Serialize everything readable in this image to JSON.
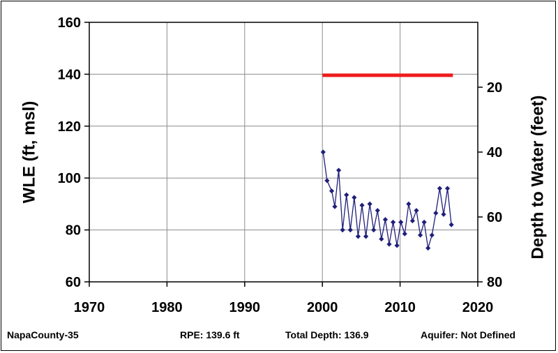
{
  "chart_data": {
    "type": "line",
    "ylabel": "WLE (ft, msl)",
    "y2label": "Depth to Water (feet)",
    "xlim": [
      1970,
      2020
    ],
    "ylim": [
      60,
      160
    ],
    "y2lim": [
      80,
      0
    ],
    "x_ticks": [
      "1970",
      "1980",
      "1990",
      "2000",
      "2010",
      "2020"
    ],
    "y_ticks": [
      "60",
      "80",
      "100",
      "120",
      "140",
      "160"
    ],
    "y2_ticks": [
      "80",
      "60",
      "40",
      "20"
    ],
    "y2_tick_values": [
      80,
      60,
      40,
      20
    ],
    "grid": true,
    "colors": {
      "series": "#1f1f7a",
      "rpe_line": "#ee1c1c"
    },
    "rpe_line": {
      "y": 139.6,
      "x": [
        2000,
        2016.8
      ]
    },
    "series": [
      {
        "x": [
          2000.1,
          2000.6,
          2001.2,
          2001.6,
          2002.1,
          2002.6,
          2003.1,
          2003.6,
          2004.1,
          2004.6,
          2005.1,
          2005.6,
          2006.1,
          2006.6,
          2007.1,
          2007.6,
          2008.1,
          2008.6,
          2009.1,
          2009.6,
          2010.1,
          2010.6,
          2011.1,
          2011.6,
          2012.1,
          2012.6,
          2013.1,
          2013.6,
          2014.1,
          2014.6,
          2015.1,
          2015.6,
          2016.1,
          2016.6
        ],
        "y": [
          110,
          99,
          95,
          89,
          103,
          80,
          93.5,
          80,
          92.5,
          77.5,
          89.5,
          77.5,
          90,
          80,
          87.5,
          76.5,
          84,
          74.5,
          83,
          74,
          83,
          78.5,
          90,
          83.5,
          87.5,
          78,
          83,
          73,
          78,
          86.5,
          96,
          86,
          96,
          82
        ]
      }
    ]
  },
  "footer": {
    "well_id": "NapaCounty-35",
    "rpe": "RPE: 139.6 ft",
    "total_depth": "Total Depth: 136.9",
    "aquifer": "Aquifer: Not Defined"
  }
}
